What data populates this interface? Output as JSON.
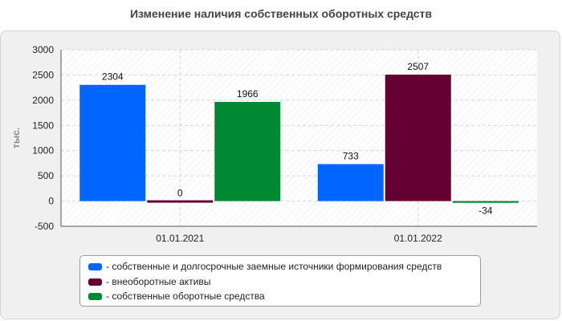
{
  "chart_data": {
    "type": "bar",
    "title": "Изменение наличия собственных оборотных средств",
    "ylabel": "тыс.",
    "xlabel": "",
    "categories": [
      "01.01.2021",
      "01.01.2022"
    ],
    "ylim": [
      -500,
      3000
    ],
    "yticks": [
      -500,
      0,
      500,
      1000,
      1500,
      2000,
      2500,
      3000
    ],
    "grid": true,
    "legend_position": "bottom",
    "series": [
      {
        "name": "- собственные и долгосрочные заемные источники формирования средств",
        "color": "#0066ff",
        "values": [
          2304,
          733
        ]
      },
      {
        "name": "- внеоборотные активы",
        "color": "#660033",
        "values": [
          0,
          2507
        ]
      },
      {
        "name": "- собственные оборотные средства",
        "color": "#008833",
        "values": [
          1966,
          -34
        ]
      }
    ]
  }
}
